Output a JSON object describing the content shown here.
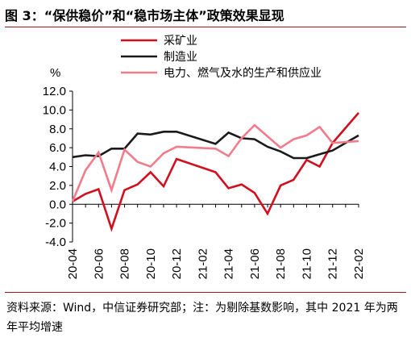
{
  "title": "图 3：“保供稳价”和“稳市场主体”政策效果显现",
  "source_note": "资料来源：Wind，中信证券研究部；注：为剔除基数影响，其中 2021 年为两年平均增速",
  "chart_data": {
    "type": "line",
    "ylabel": "%",
    "ylim": [
      -4.0,
      12.0
    ],
    "yticks": [
      "-4.0",
      "-2.0",
      "0.0",
      "2.0",
      "4.0",
      "6.0",
      "8.0",
      "10.0",
      "12.0"
    ],
    "x": [
      "20-04",
      "20-05",
      "20-06",
      "20-07",
      "20-08",
      "20-09",
      "20-10",
      "20-11",
      "20-12",
      "21-01",
      "21-02",
      "21-03",
      "21-04",
      "21-05",
      "21-06",
      "21-07",
      "21-08",
      "21-09",
      "21-10",
      "21-11",
      "21-12",
      "22-01",
      "22-02"
    ],
    "xtick_labels": [
      "20-04",
      "20-06",
      "20-08",
      "20-10",
      "20-12",
      "21-02",
      "21-04",
      "21-06",
      "21-08",
      "21-10",
      "21-12",
      "22-02"
    ],
    "legend_position": "top-right",
    "series": [
      {
        "name": "采矿业",
        "color": "#d0101e",
        "values": [
          0.3,
          1.1,
          1.6,
          -2.6,
          1.5,
          2.1,
          3.4,
          1.9,
          4.8,
          null,
          null,
          3.4,
          1.7,
          2.1,
          1.2,
          -1.0,
          2.0,
          2.6,
          4.7,
          4.0,
          6.5,
          null,
          9.7
        ]
      },
      {
        "name": "制造业",
        "color": "#1a1a1a",
        "values": [
          5.0,
          5.2,
          5.1,
          5.9,
          5.9,
          7.5,
          7.4,
          7.7,
          7.7,
          null,
          null,
          6.4,
          7.6,
          7.0,
          6.9,
          6.1,
          5.6,
          4.9,
          4.9,
          5.3,
          5.7,
          null,
          7.3
        ]
      },
      {
        "name": "电力、燃气及水的生产和供应业",
        "color": "#f17c8c",
        "values": [
          0.3,
          3.6,
          5.5,
          1.5,
          5.8,
          4.5,
          4.0,
          5.4,
          6.1,
          null,
          null,
          5.9,
          5.1,
          7.0,
          8.4,
          7.2,
          6.0,
          6.9,
          7.3,
          8.2,
          6.5,
          null,
          6.7
        ]
      }
    ]
  }
}
